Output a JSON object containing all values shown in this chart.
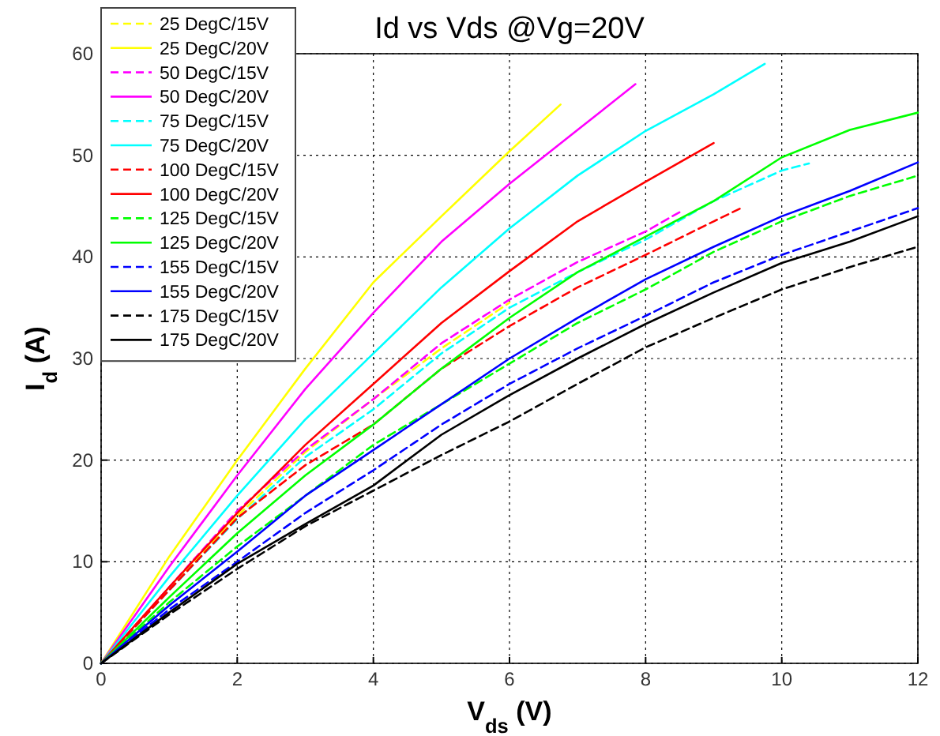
{
  "chart_data": {
    "type": "line",
    "title": "Id vs Vds @Vg=20V",
    "xlabel": "V$_{ds}$ (V)",
    "ylabel": "I$_{d}$ (A)",
    "xlim": [
      0,
      12
    ],
    "ylim": [
      0,
      60
    ],
    "xticks": [
      0,
      2,
      4,
      6,
      8,
      10,
      12
    ],
    "yticks": [
      0,
      10,
      20,
      30,
      40,
      50,
      60
    ],
    "grid": true,
    "legend": "top left",
    "marker": "none",
    "series": [
      {
        "name": "25 DegC/15V",
        "color": "#ffff00",
        "line_style": "dashed",
        "x": [
          0,
          1,
          2,
          3,
          4,
          5,
          6
        ],
        "values": [
          0,
          7.3,
          14.5,
          20.8,
          26,
          31,
          35.5
        ]
      },
      {
        "name": "25 DegC/20V",
        "color": "#ffff00",
        "line_style": "solid",
        "x": [
          0,
          1,
          2,
          3,
          4,
          5,
          6,
          6.75
        ],
        "values": [
          0,
          10.5,
          20,
          29,
          37.5,
          44,
          50.4,
          55
        ]
      },
      {
        "name": "50 DegC/15V",
        "color": "#ff00ff",
        "line_style": "dashed",
        "x": [
          0,
          1,
          2,
          3,
          4,
          5,
          6,
          7,
          8,
          8.55
        ],
        "values": [
          0,
          7.5,
          15,
          21,
          26,
          31.5,
          35.8,
          39.5,
          42.5,
          44.6
        ]
      },
      {
        "name": "50 DegC/20V",
        "color": "#ff00ff",
        "line_style": "solid",
        "x": [
          0,
          1,
          2,
          3,
          4,
          5,
          6,
          7,
          7.85
        ],
        "values": [
          0,
          9.5,
          18.5,
          27,
          34.5,
          41.5,
          47.2,
          52.5,
          57
        ]
      },
      {
        "name": "75 DegC/15V",
        "color": "#00ffff",
        "line_style": "dashed",
        "x": [
          0,
          1,
          2,
          3,
          4,
          5,
          6,
          7,
          8,
          9,
          10,
          10.4
        ],
        "values": [
          0,
          7.2,
          14.2,
          20.3,
          25,
          30.5,
          35,
          38.5,
          41.7,
          45.5,
          48.5,
          49.2
        ]
      },
      {
        "name": "75 DegC/20V",
        "color": "#00ffff",
        "line_style": "solid",
        "x": [
          0,
          1,
          2,
          3,
          4,
          5,
          6,
          7,
          8,
          9,
          9.75
        ],
        "values": [
          0,
          8.5,
          16.5,
          24,
          30.5,
          37,
          42.8,
          48,
          52.4,
          56,
          59
        ]
      },
      {
        "name": "100 DegC/15V",
        "color": "#ff0000",
        "line_style": "dashed",
        "x": [
          0,
          1,
          2,
          3,
          4,
          5,
          6,
          7,
          8,
          9,
          9.4
        ],
        "values": [
          0,
          7.2,
          14.3,
          19.5,
          23.5,
          29,
          33.2,
          37,
          40.2,
          43.5,
          44.8
        ]
      },
      {
        "name": "100 DegC/20V",
        "color": "#ff0000",
        "line_style": "solid",
        "x": [
          0,
          1,
          2,
          3,
          4,
          5,
          6,
          7,
          8,
          9
        ],
        "values": [
          0,
          7.5,
          14.8,
          21.5,
          27.5,
          33.5,
          38.6,
          43.5,
          47.4,
          51.2
        ]
      },
      {
        "name": "125 DegC/15V",
        "color": "#00ff00",
        "line_style": "dashed",
        "x": [
          0,
          1,
          2,
          3,
          4,
          5,
          6,
          7,
          8,
          9,
          10,
          11,
          12
        ],
        "values": [
          0,
          6,
          11.5,
          16.5,
          21.5,
          25.5,
          29.5,
          33.5,
          36.8,
          40.5,
          43.5,
          46,
          48
        ]
      },
      {
        "name": "125 DegC/20V",
        "color": "#00ff00",
        "line_style": "solid",
        "x": [
          0,
          1,
          2,
          3,
          4,
          5,
          6,
          7,
          8,
          9,
          10,
          11,
          12
        ],
        "values": [
          0,
          6.5,
          12.8,
          18.5,
          23.5,
          29,
          34,
          38.5,
          42,
          45.5,
          49.8,
          52.5,
          54.2
        ]
      },
      {
        "name": "155 DegC/15V",
        "color": "#0000ff",
        "line_style": "dashed",
        "x": [
          0,
          1,
          2,
          3,
          4,
          5,
          6,
          7,
          8,
          9,
          10,
          11,
          12
        ],
        "values": [
          0,
          5.3,
          10,
          14.8,
          19,
          23.5,
          27.5,
          31,
          34.2,
          37.5,
          40.2,
          42.5,
          44.8
        ]
      },
      {
        "name": "155 DegC/20V",
        "color": "#0000ff",
        "line_style": "solid",
        "x": [
          0,
          1,
          2,
          3,
          4,
          5,
          6,
          7,
          8,
          9,
          10,
          11,
          12
        ],
        "values": [
          0,
          5.7,
          11,
          16.5,
          21,
          25.5,
          30,
          34,
          37.8,
          41,
          44,
          46.5,
          49.3
        ]
      },
      {
        "name": "175 DegC/15V",
        "color": "#000000",
        "line_style": "dashed",
        "x": [
          0,
          1,
          2,
          3,
          4,
          5,
          6,
          7,
          8,
          9,
          10,
          11,
          12
        ],
        "values": [
          0,
          4.8,
          9.3,
          13.5,
          17,
          20.5,
          23.8,
          27.5,
          31.1,
          34,
          36.8,
          39,
          41
        ]
      },
      {
        "name": "175 DegC/20V",
        "color": "#000000",
        "line_style": "solid",
        "x": [
          0,
          1,
          2,
          3,
          4,
          5,
          6,
          7,
          8,
          9,
          10,
          11,
          12
        ],
        "values": [
          0,
          5,
          9.8,
          13.7,
          17.5,
          22.5,
          26.4,
          30,
          33.4,
          36.5,
          39.4,
          41.5,
          44
        ]
      }
    ]
  }
}
